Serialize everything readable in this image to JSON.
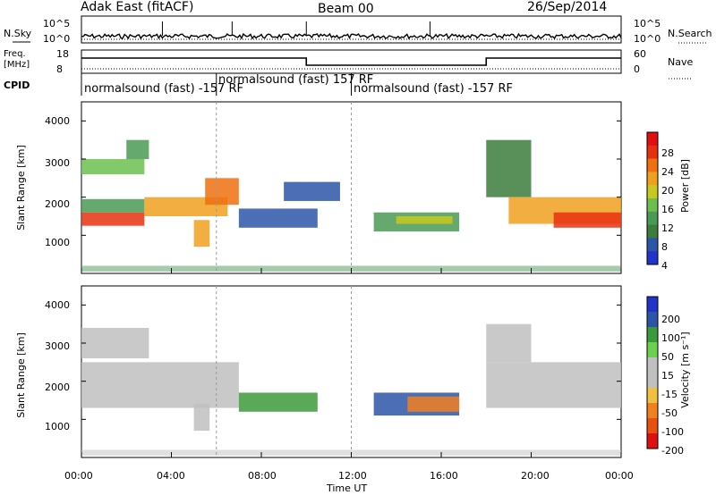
{
  "header": {
    "station": "Adak East (fitACF)",
    "beam": "Beam 00",
    "date": "26/Sep/2014"
  },
  "noise_panel": {
    "left_label": "N.Sky",
    "right_label": "N.Search",
    "left_ticks": [
      "10^5",
      "10^0"
    ],
    "right_ticks": [
      "10^5",
      "10^0"
    ]
  },
  "freq_panel": {
    "left_label_top": "Freq.",
    "left_label_bottom": "[MHz]",
    "right_label": "Nave",
    "left_ticks": [
      "18",
      "8"
    ],
    "right_ticks": [
      "60",
      "0"
    ],
    "frequency_segments": [
      {
        "start_hour": 0,
        "end_hour": 10,
        "value": "high"
      },
      {
        "start_hour": 10,
        "end_hour": 18,
        "value": "low"
      },
      {
        "start_hour": 18,
        "end_hour": 24,
        "value": "high"
      }
    ]
  },
  "cpid_row": {
    "label": "CPID",
    "segments": [
      {
        "text": "normalsound (fast) -157 RF",
        "start_hour": 0
      },
      {
        "text": "normalsound (fast) 157 RF",
        "start_hour": 6
      },
      {
        "text": "normalsound (fast) -157 RF",
        "start_hour": 12
      }
    ]
  },
  "colors": {
    "power_scale": [
      "#2233cc",
      "#2b55a8",
      "#3c7d3c",
      "#4a9a56",
      "#6cbf4f",
      "#c8c820",
      "#f0a020",
      "#f07010",
      "#e83010",
      "#e01010"
    ],
    "velocity_scale": [
      "#2233cc",
      "#2b55a8",
      "#3c9a3c",
      "#6cd04f",
      "#c0c0c0",
      "#c0c0c0",
      "#f0c040",
      "#f08020",
      "#e85010",
      "#e01010"
    ]
  },
  "chart_data": [
    {
      "type": "heatmap",
      "title": "Power",
      "ylabel": "Slant Range [km]",
      "xlabel": "",
      "x_range_hours": [
        0,
        24
      ],
      "ylim": [
        0,
        4500
      ],
      "y_ticks": [
        "1000",
        "2000",
        "3000",
        "4000"
      ],
      "colorbar_label": "Power [dB]",
      "colorbar_ticks": [
        "4",
        "8",
        "12",
        "16",
        "20",
        "24",
        "28"
      ],
      "colorbar_range": [
        0,
        32
      ],
      "regions": [
        {
          "t0": 0.0,
          "t1": 2.8,
          "r0": 1250,
          "r1": 1600,
          "level": 28
        },
        {
          "t0": 0.0,
          "t1": 2.8,
          "r0": 1600,
          "r1": 1950,
          "level": 12
        },
        {
          "t0": 2.8,
          "t1": 6.5,
          "r0": 1500,
          "r1": 2000,
          "level": 20
        },
        {
          "t0": 5.5,
          "t1": 7.0,
          "r0": 1800,
          "r1": 2500,
          "level": 24
        },
        {
          "t0": 0.0,
          "t1": 2.8,
          "r0": 2600,
          "r1": 3000,
          "level": 14
        },
        {
          "t0": 2.0,
          "t1": 3.0,
          "r0": 3000,
          "r1": 3500,
          "level": 12
        },
        {
          "t0": 5.0,
          "t1": 5.7,
          "r0": 700,
          "r1": 1400,
          "level": 22
        },
        {
          "t0": 7.0,
          "t1": 10.5,
          "r0": 1200,
          "r1": 1700,
          "level": 6
        },
        {
          "t0": 9.0,
          "t1": 11.5,
          "r0": 1900,
          "r1": 2400,
          "level": 6
        },
        {
          "t0": 13.0,
          "t1": 16.8,
          "r0": 1100,
          "r1": 1600,
          "level": 10
        },
        {
          "t0": 14.0,
          "t1": 16.5,
          "r0": 1300,
          "r1": 1500,
          "level": 18
        },
        {
          "t0": 18.0,
          "t1": 20.0,
          "r0": 2000,
          "r1": 3500,
          "level": 8
        },
        {
          "t0": 19.0,
          "t1": 24.0,
          "r0": 1300,
          "r1": 2000,
          "level": 22
        },
        {
          "t0": 21.0,
          "t1": 24.0,
          "r0": 1200,
          "r1": 1600,
          "level": 28
        }
      ]
    },
    {
      "type": "heatmap",
      "title": "Velocity",
      "ylabel": "Slant Range [km]",
      "xlabel": "Time UT",
      "x_ticks": [
        "00:00",
        "04:00",
        "08:00",
        "12:00",
        "16:00",
        "20:00",
        "00:00"
      ],
      "x_range_hours": [
        0,
        24
      ],
      "ylim": [
        0,
        4500
      ],
      "y_ticks": [
        "1000",
        "2000",
        "3000",
        "4000"
      ],
      "colorbar_label": "Velocity [m s⁻¹]",
      "colorbar_ticks": [
        "200",
        "100",
        "50",
        "15",
        "-15",
        "-50",
        "-100",
        "-200"
      ],
      "regions": [
        {
          "t0": 0.0,
          "t1": 7.0,
          "r0": 1300,
          "r1": 2500,
          "v": 0
        },
        {
          "t0": 0.0,
          "t1": 3.0,
          "r0": 2600,
          "r1": 3400,
          "v": 0
        },
        {
          "t0": 5.0,
          "t1": 5.7,
          "r0": 700,
          "r1": 1400,
          "v": 0
        },
        {
          "t0": 7.0,
          "t1": 10.5,
          "r0": 1200,
          "r1": 1700,
          "v": 60
        },
        {
          "t0": 13.0,
          "t1": 16.8,
          "r0": 1100,
          "r1": 1700,
          "v": 120
        },
        {
          "t0": 14.5,
          "t1": 16.8,
          "r0": 1200,
          "r1": 1600,
          "v": -60
        },
        {
          "t0": 18.0,
          "t1": 24.0,
          "r0": 1300,
          "r1": 2500,
          "v": 0
        },
        {
          "t0": 18.0,
          "t1": 20.0,
          "r0": 2500,
          "r1": 3500,
          "v": 0
        }
      ]
    }
  ]
}
